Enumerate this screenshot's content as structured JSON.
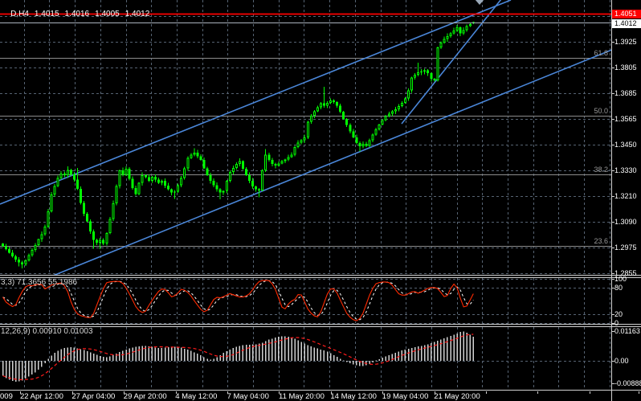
{
  "window": {
    "background": "#000000"
  },
  "quote": {
    "symbol_period": "D,H4",
    "open": "1.4015",
    "high": "1.4016",
    "low": "1.4005",
    "close": "1.4012"
  },
  "price_axis": {
    "labels": [
      "1.3925",
      "1.3805",
      "1.3685",
      "1.3565",
      "1.3450",
      "1.3330",
      "1.3210",
      "1.3090",
      "1.2975",
      "1.2855"
    ],
    "ask_tag": {
      "text": "1.4051",
      "bg": "#ff0000",
      "fg": "#ffffff"
    },
    "bid_tag": {
      "text": "1.4012",
      "bg": "#ffffff",
      "fg": "#000000"
    }
  },
  "time_axis": {
    "left_fragment": "009",
    "labels": [
      "22 Apr 12:00",
      "27 Apr 04:00",
      "29 Apr 20:00",
      "4 May 12:00",
      "7 May 04:00",
      "11 May 20:00",
      "14 May 12:00",
      "19 May 04:00",
      "21 May 20:00"
    ]
  },
  "fibonacci": {
    "color": "#8c8c8c",
    "levels": [
      {
        "label": "61.8",
        "price": 1.3851
      },
      {
        "label": "50.0",
        "price": 1.3582
      },
      {
        "label": "38.2",
        "price": 1.3312
      },
      {
        "label": "23.6",
        "price": 1.2983
      }
    ]
  },
  "overlay_lines": {
    "ask_line": {
      "price": 1.4051,
      "color": "#ff0000"
    },
    "bid_line": {
      "price": 1.4012,
      "color": "#aab2bc"
    },
    "trend_color": "#4a86d8",
    "trendlines": [
      {
        "name": "channel-top",
        "x1": 0,
        "y1": 254,
        "x2": 636,
        "y2": 0
      },
      {
        "name": "channel-bottom",
        "x1": 0,
        "y1": 369.7,
        "x2": 761,
        "y2": 62.3
      },
      {
        "name": "breakout-trendline",
        "x1": 500,
        "y1": 154,
        "x2": 624,
        "y2": -1
      }
    ]
  },
  "marker": {
    "shape": "triangle-down",
    "x": 597,
    "color": "#9aa8b8"
  },
  "grid": {
    "color": "#566372"
  },
  "chart_data": [
    {
      "type": "candlestick",
      "symbol": "D,H4",
      "ylim": [
        1.2845,
        1.4085
      ],
      "bull_color": "#00ff00",
      "first_open": 1.2992,
      "closes": [
        1.298,
        1.2966,
        1.295,
        1.2934,
        1.2918,
        1.2906,
        1.2896,
        1.2914,
        1.2938,
        1.2962,
        1.2986,
        1.3012,
        1.3036,
        1.307,
        1.314,
        1.3218,
        1.3258,
        1.3295,
        1.3315,
        1.3308,
        1.3332,
        1.3312,
        1.3288,
        1.3245,
        1.318,
        1.313,
        1.3095,
        1.3048,
        1.301,
        1.2996,
        1.301,
        1.2992,
        1.304,
        1.3105,
        1.3178,
        1.3258,
        1.333,
        1.331,
        1.3338,
        1.3292,
        1.3248,
        1.322,
        1.3272,
        1.3308,
        1.3298,
        1.3282,
        1.33,
        1.3288,
        1.3272,
        1.3282,
        1.326,
        1.3242,
        1.3228,
        1.3232,
        1.3262,
        1.3295,
        1.334,
        1.3388,
        1.3402,
        1.3412,
        1.3395,
        1.3378,
        1.334,
        1.3308,
        1.3282,
        1.3262,
        1.3242,
        1.3228,
        1.3235,
        1.3282,
        1.3322,
        1.3342,
        1.336,
        1.3372,
        1.3338,
        1.3308,
        1.3282,
        1.3255,
        1.3242,
        1.3238,
        1.333,
        1.3402,
        1.3378,
        1.336,
        1.3352,
        1.3362,
        1.3372,
        1.338,
        1.3392,
        1.3402,
        1.3438,
        1.3458,
        1.347,
        1.3482,
        1.3555,
        1.3582,
        1.3602,
        1.3622,
        1.364,
        1.3628,
        1.3642,
        1.3652,
        1.3645,
        1.3628,
        1.36,
        1.3568,
        1.354,
        1.351,
        1.3482,
        1.3456,
        1.3442,
        1.3452,
        1.3444,
        1.347,
        1.3496,
        1.352,
        1.3542,
        1.3562,
        1.358,
        1.3592,
        1.3602,
        1.3612,
        1.3626,
        1.3642,
        1.3662,
        1.37,
        1.3758,
        1.3772,
        1.3782,
        1.3786,
        1.3792,
        1.3778,
        1.3752,
        1.3746,
        1.3898,
        1.392,
        1.3936,
        1.395,
        1.3962,
        1.3976,
        1.399,
        1.3962,
        1.3978,
        1.3996,
        1.4006,
        1.4012
      ],
      "wick_high_overrides": {
        "20": 1.3348,
        "23": 1.3342,
        "59": 1.3432,
        "73": 1.3385,
        "81": 1.3428,
        "99": 1.3716,
        "128": 1.3828,
        "140": 1.4002
      },
      "wick_low_overrides": {
        "5": 1.2886,
        "6": 1.2878,
        "28": 1.2968,
        "30": 1.2966,
        "53": 1.3198,
        "67": 1.3196,
        "79": 1.3205,
        "110": 1.3418
      },
      "last_bar": {
        "o": 1.4015,
        "h": 1.4016,
        "l": 1.4005,
        "c": 1.4012
      }
    },
    {
      "type": "line",
      "name": "stochastic",
      "label": "3,3) 71.3656 55.1986",
      "levels": [
        100,
        80,
        20,
        0
      ],
      "level_labels": [
        "100",
        "80",
        "20",
        "0"
      ],
      "current": {
        "main": "71.3656",
        "signal": "55.1986"
      },
      "main_color": "#ff2a00",
      "signal_color": "#ffffff",
      "main": [
        [
          2,
          62
        ],
        [
          8,
          45
        ],
        [
          14,
          38
        ],
        [
          18,
          34
        ],
        [
          24,
          58
        ],
        [
          30,
          78
        ],
        [
          34,
          85
        ],
        [
          40,
          83
        ],
        [
          46,
          87
        ],
        [
          52,
          86
        ],
        [
          57,
          74
        ],
        [
          62,
          84
        ],
        [
          70,
          88
        ],
        [
          78,
          90
        ],
        [
          84,
          72
        ],
        [
          90,
          38
        ],
        [
          95,
          22
        ],
        [
          100,
          16
        ],
        [
          106,
          13
        ],
        [
          112,
          10
        ],
        [
          117,
          22
        ],
        [
          123,
          52
        ],
        [
          129,
          78
        ],
        [
          133,
          91
        ],
        [
          140,
          93
        ],
        [
          147,
          94
        ],
        [
          152,
          91
        ],
        [
          158,
          76
        ],
        [
          164,
          55
        ],
        [
          170,
          33
        ],
        [
          175,
          24
        ],
        [
          180,
          22
        ],
        [
          185,
          38
        ],
        [
          191,
          55
        ],
        [
          197,
          70
        ],
        [
          203,
          78
        ],
        [
          208,
          72
        ],
        [
          213,
          58
        ],
        [
          219,
          62
        ],
        [
          226,
          76
        ],
        [
          232,
          72
        ],
        [
          238,
          60
        ],
        [
          244,
          44
        ],
        [
          250,
          30
        ],
        [
          256,
          22
        ],
        [
          262,
          40
        ],
        [
          268,
          58
        ],
        [
          274,
          56
        ],
        [
          280,
          60
        ],
        [
          286,
          66
        ],
        [
          292,
          62
        ],
        [
          298,
          58
        ],
        [
          304,
          58
        ],
        [
          310,
          64
        ],
        [
          316,
          78
        ],
        [
          321,
          92
        ],
        [
          328,
          96
        ],
        [
          335,
          95
        ],
        [
          341,
          84
        ],
        [
          347,
          55
        ],
        [
          352,
          30
        ],
        [
          357,
          32
        ],
        [
          361,
          52
        ],
        [
          365,
          46
        ],
        [
          370,
          62
        ],
        [
          374,
          67
        ],
        [
          379,
          48
        ],
        [
          384,
          28
        ],
        [
          390,
          16
        ],
        [
          396,
          13
        ],
        [
          401,
          30
        ],
        [
          406,
          60
        ],
        [
          411,
          76
        ],
        [
          415,
          78
        ],
        [
          420,
          66
        ],
        [
          426,
          42
        ],
        [
          432,
          20
        ],
        [
          438,
          8
        ],
        [
          444,
          4
        ],
        [
          450,
          12
        ],
        [
          456,
          42
        ],
        [
          462,
          72
        ],
        [
          468,
          88
        ],
        [
          474,
          92
        ],
        [
          480,
          92
        ],
        [
          486,
          90
        ],
        [
          491,
          78
        ],
        [
          497,
          64
        ],
        [
          503,
          61
        ],
        [
          509,
          66
        ],
        [
          515,
          72
        ],
        [
          520,
          66
        ],
        [
          526,
          71
        ],
        [
          532,
          77
        ],
        [
          538,
          80
        ],
        [
          544,
          79
        ],
        [
          550,
          66
        ],
        [
          555,
          54
        ],
        [
          560,
          73
        ],
        [
          564,
          88
        ],
        [
          568,
          85
        ],
        [
          572,
          62
        ],
        [
          576,
          38
        ],
        [
          579,
          32
        ],
        [
          583,
          42
        ],
        [
          587,
          58
        ],
        [
          591,
          71
        ]
      ]
    },
    {
      "type": "bar",
      "name": "macd",
      "label": "12,26,9) 0.00910 0.01003",
      "axis_labels": [
        "0.01163",
        "0.00",
        "-0.00888"
      ],
      "current": {
        "macd": "0.00910",
        "signal": "0.01003"
      },
      "bar_color": "#d2d2d2",
      "signal_color": "#ff1a1a",
      "macd": [
        [
          2,
          -55
        ],
        [
          8,
          -70
        ],
        [
          14,
          -78
        ],
        [
          20,
          -82
        ],
        [
          26,
          -80
        ],
        [
          32,
          -70
        ],
        [
          38,
          -58
        ],
        [
          44,
          -45
        ],
        [
          50,
          -30
        ],
        [
          54,
          -18
        ],
        [
          58,
          0
        ],
        [
          62,
          15
        ],
        [
          66,
          27
        ],
        [
          71,
          38
        ],
        [
          76,
          46
        ],
        [
          81,
          51
        ],
        [
          86,
          54
        ],
        [
          91,
          53
        ],
        [
          96,
          50
        ],
        [
          101,
          46
        ],
        [
          106,
          41
        ],
        [
          111,
          35
        ],
        [
          116,
          29
        ],
        [
          121,
          23
        ],
        [
          126,
          18
        ],
        [
          131,
          13
        ],
        [
          135,
          15
        ],
        [
          139,
          21
        ],
        [
          143,
          27
        ],
        [
          148,
          33
        ],
        [
          153,
          40
        ],
        [
          158,
          46
        ],
        [
          163,
          51
        ],
        [
          168,
          55
        ],
        [
          173,
          57
        ],
        [
          178,
          59
        ],
        [
          183,
          58
        ],
        [
          188,
          56
        ],
        [
          193,
          53
        ],
        [
          198,
          51
        ],
        [
          203,
          51
        ],
        [
          208,
          53
        ],
        [
          213,
          55
        ],
        [
          218,
          56
        ],
        [
          223,
          54
        ],
        [
          228,
          50
        ],
        [
          233,
          45
        ],
        [
          238,
          39
        ],
        [
          243,
          32
        ],
        [
          248,
          25
        ],
        [
          253,
          16
        ],
        [
          257,
          9
        ],
        [
          261,
          4
        ],
        [
          265,
          6
        ],
        [
          269,
          12
        ],
        [
          273,
          20
        ],
        [
          277,
          29
        ],
        [
          282,
          38
        ],
        [
          287,
          46
        ],
        [
          292,
          53
        ],
        [
          297,
          58
        ],
        [
          302,
          61
        ],
        [
          307,
          63
        ],
        [
          312,
          64
        ],
        [
          317,
          65
        ],
        [
          322,
          67
        ],
        [
          327,
          72
        ],
        [
          332,
          80
        ],
        [
          337,
          86
        ],
        [
          342,
          91
        ],
        [
          347,
          95
        ],
        [
          352,
          98
        ],
        [
          357,
          97
        ],
        [
          362,
          93
        ],
        [
          367,
          87
        ],
        [
          372,
          80
        ],
        [
          377,
          72
        ],
        [
          382,
          64
        ],
        [
          387,
          57
        ],
        [
          392,
          52
        ],
        [
          397,
          47
        ],
        [
          402,
          43
        ],
        [
          407,
          37
        ],
        [
          412,
          29
        ],
        [
          417,
          20
        ],
        [
          422,
          11
        ],
        [
          427,
          3
        ],
        [
          432,
          -5
        ],
        [
          437,
          -12
        ],
        [
          442,
          -17
        ],
        [
          447,
          -20
        ],
        [
          452,
          -20
        ],
        [
          457,
          -17
        ],
        [
          461,
          -12
        ],
        [
          465,
          -5
        ],
        [
          469,
          3
        ],
        [
          473,
          8
        ],
        [
          477,
          13
        ],
        [
          481,
          18
        ],
        [
          486,
          24
        ],
        [
          491,
          30
        ],
        [
          496,
          36
        ],
        [
          501,
          41
        ],
        [
          506,
          46
        ],
        [
          511,
          50
        ],
        [
          516,
          54
        ],
        [
          521,
          57
        ],
        [
          526,
          60
        ],
        [
          531,
          64
        ],
        [
          536,
          69
        ],
        [
          541,
          75
        ],
        [
          546,
          81
        ],
        [
          551,
          87
        ],
        [
          556,
          93
        ],
        [
          561,
          98
        ],
        [
          566,
          104
        ],
        [
          571,
          111
        ],
        [
          576,
          117
        ],
        [
          580,
          114
        ],
        [
          584,
          106
        ],
        [
          588,
          97
        ],
        [
          591,
          91
        ]
      ]
    }
  ]
}
